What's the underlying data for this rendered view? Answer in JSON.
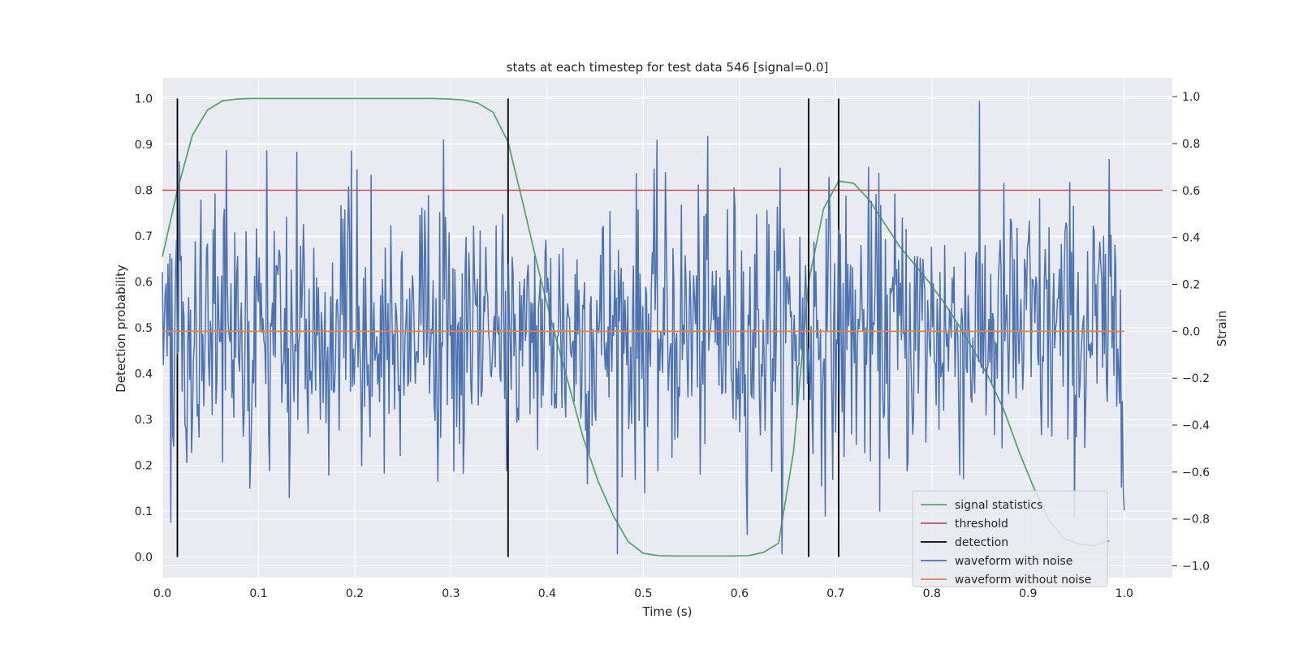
{
  "chart_data": {
    "type": "line",
    "title": "stats at each timestep for test data 546 [signal=0.0]",
    "xlabel": "Time (s)",
    "ylabel_left": "Detection probability",
    "ylabel_right": "Strain",
    "xlim": [
      0.0,
      1.05
    ],
    "ylim_left": [
      -0.045,
      1.045
    ],
    "ylim_right": [
      -1.05,
      1.08
    ],
    "x_ticks": [
      "0.0",
      "0.1",
      "0.2",
      "0.3",
      "0.4",
      "0.5",
      "0.6",
      "0.7",
      "0.8",
      "0.9",
      "1.0"
    ],
    "y_ticks_left": [
      "0.0",
      "0.1",
      "0.2",
      "0.3",
      "0.4",
      "0.5",
      "0.6",
      "0.7",
      "0.8",
      "0.9",
      "1.0"
    ],
    "y_ticks_right": [
      "−1.0",
      "−0.8",
      "−0.6",
      "−0.4",
      "−0.2",
      "0.0",
      "0.2",
      "0.4",
      "0.6",
      "0.8",
      "1.0"
    ],
    "grid": true,
    "legend_position": "lower-right",
    "colors": {
      "background": "#eaeaf2",
      "grid": "#ffffff",
      "signal_statistics": "#55a868",
      "threshold": "#c44e52",
      "detection": "#000000",
      "waveform_with_noise": "#4c72b0",
      "waveform_without_noise": "#dd8452"
    },
    "series": [
      {
        "name": "signal statistics",
        "axis": "left",
        "x": [
          0.0,
          0.0156,
          0.0312,
          0.0469,
          0.0625,
          0.0781,
          0.0938,
          0.1094,
          0.125,
          0.1406,
          0.1562,
          0.1719,
          0.1875,
          0.2031,
          0.2188,
          0.2344,
          0.25,
          0.2656,
          0.2812,
          0.2969,
          0.3125,
          0.3281,
          0.3438,
          0.3594,
          0.375,
          0.3906,
          0.4062,
          0.4219,
          0.4375,
          0.4531,
          0.4688,
          0.4844,
          0.5,
          0.5156,
          0.5312,
          0.5469,
          0.5625,
          0.5781,
          0.5938,
          0.6094,
          0.625,
          0.6406,
          0.6562,
          0.6719,
          0.6875,
          0.7031,
          0.7188,
          0.7344,
          0.75,
          0.7656,
          0.7812,
          0.7969,
          0.8125,
          0.8281,
          0.8438,
          0.8594,
          0.875,
          0.8906,
          0.9062,
          0.9219,
          0.9375,
          0.9531,
          0.9688,
          0.9844
        ],
        "y": [
          0.655,
          0.8,
          0.92,
          0.975,
          0.995,
          0.999,
          1.0,
          1.0,
          1.0,
          1.0,
          1.0,
          1.0,
          1.0,
          1.0,
          1.0,
          1.0,
          1.0,
          1.0,
          1.0,
          0.999,
          0.997,
          0.99,
          0.97,
          0.905,
          0.77,
          0.63,
          0.5,
          0.38,
          0.26,
          0.165,
          0.09,
          0.033,
          0.008,
          0.003,
          0.002,
          0.002,
          0.002,
          0.002,
          0.002,
          0.003,
          0.01,
          0.03,
          0.23,
          0.6,
          0.76,
          0.82,
          0.815,
          0.78,
          0.73,
          0.68,
          0.64,
          0.6,
          0.555,
          0.505,
          0.45,
          0.39,
          0.32,
          0.23,
          0.15,
          0.08,
          0.04,
          0.028,
          0.025,
          0.035
        ]
      },
      {
        "name": "threshold",
        "axis": "left",
        "x": [
          0.0,
          1.04
        ],
        "y": [
          0.8,
          0.8
        ]
      },
      {
        "name": "detection",
        "axis": "left",
        "x_positions": [
          0.0156,
          0.3594,
          0.6719,
          0.7031
        ],
        "y_range": [
          0.0,
          1.0
        ]
      },
      {
        "name": "waveform with noise",
        "axis": "right",
        "x_range": [
          0.0,
          1.0
        ],
        "n_samples": 1024,
        "approx_amplitude_std": 0.3,
        "approx_range": [
          -0.95,
          1.0
        ]
      },
      {
        "name": "waveform without noise",
        "axis": "right",
        "x": [
          0.0,
          1.0
        ],
        "y": [
          0.0,
          0.0
        ]
      }
    ],
    "legend": [
      "signal statistics",
      "threshold",
      "detection",
      "waveform with noise",
      "waveform without noise"
    ]
  }
}
